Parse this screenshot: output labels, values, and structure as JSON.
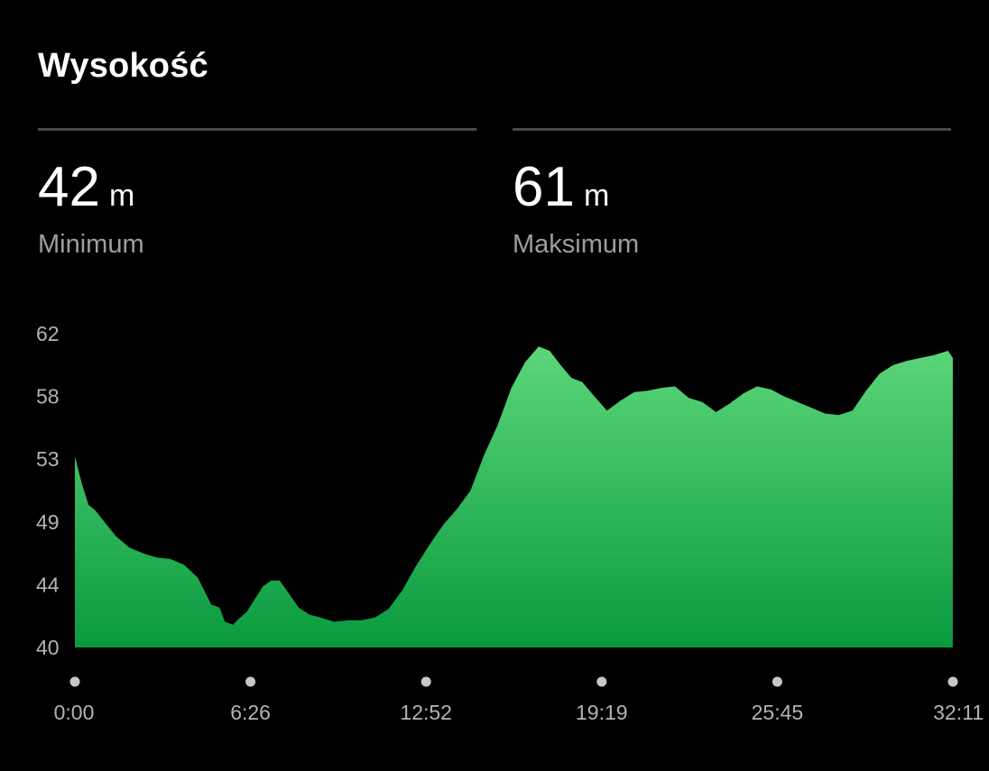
{
  "title": "Wysokość",
  "stats": {
    "min": {
      "value": "42",
      "unit": "m",
      "label": "Minimum"
    },
    "max": {
      "value": "61",
      "unit": "m",
      "label": "Maksimum"
    }
  },
  "colors": {
    "background": "#000000",
    "area_top": "#5cd67a",
    "area_bottom": "#0a9a3e",
    "divider": "#4a4a4a",
    "secondary_text": "#9e9e9e"
  },
  "chart_data": {
    "type": "area",
    "ylabel": "",
    "xlabel": "",
    "ylim": [
      40,
      62
    ],
    "y_ticks": [
      "62",
      "58",
      "53",
      "49",
      "44",
      "40"
    ],
    "y_tick_values": [
      62,
      58,
      53,
      49,
      44,
      40
    ],
    "x_ticks": [
      "0:00",
      "6:26",
      "12:52",
      "19:19",
      "25:45",
      "32:11"
    ],
    "x_tick_minutes": [
      0,
      6.433,
      12.867,
      19.317,
      25.75,
      32.183
    ],
    "grid": false,
    "series": [
      {
        "x": [
          0,
          0.25,
          0.5,
          0.75,
          1.0,
          1.5,
          2.0,
          2.5,
          3.0,
          3.5,
          4.0,
          4.5,
          5.0,
          5.3,
          5.5,
          5.8,
          6.0,
          6.3,
          6.6,
          6.9,
          7.2,
          7.5,
          7.8,
          8.2,
          8.6,
          9.0,
          9.5,
          10.0,
          10.5,
          11.0,
          11.5,
          12.0,
          12.5,
          13.0,
          13.5,
          14.0,
          14.5,
          15.0,
          15.5,
          16.0,
          16.5,
          17.0,
          17.4,
          17.8,
          18.2,
          18.6,
          19.0,
          19.5,
          20.0,
          20.5,
          21.0,
          21.5,
          22.0,
          22.5,
          23.0,
          23.5,
          24.0,
          24.5,
          25.0,
          25.5,
          26.0,
          26.5,
          27.0,
          27.5,
          28.0,
          28.5,
          29.0,
          29.5,
          30.0,
          30.5,
          31.0,
          31.5,
          32.0,
          32.18
        ],
        "y": [
          53.4,
          51.5,
          50.0,
          49.6,
          49.0,
          47.8,
          47.0,
          46.6,
          46.3,
          46.2,
          45.8,
          44.9,
          43.0,
          42.8,
          41.8,
          41.6,
          42.0,
          42.5,
          43.4,
          44.3,
          44.7,
          44.7,
          43.9,
          42.8,
          42.3,
          42.1,
          41.8,
          41.9,
          41.9,
          42.1,
          42.7,
          44.0,
          45.7,
          47.2,
          48.6,
          49.7,
          51.0,
          53.5,
          55.6,
          58.2,
          60.0,
          61.1,
          60.8,
          59.8,
          58.9,
          58.6,
          57.7,
          56.6,
          57.3,
          57.9,
          58.0,
          58.2,
          58.3,
          57.5,
          57.2,
          56.5,
          57.1,
          57.8,
          58.3,
          58.1,
          57.6,
          57.2,
          56.8,
          56.4,
          56.3,
          56.6,
          58.0,
          59.2,
          59.8,
          60.1,
          60.3,
          60.5,
          60.8,
          60.3
        ]
      }
    ]
  }
}
